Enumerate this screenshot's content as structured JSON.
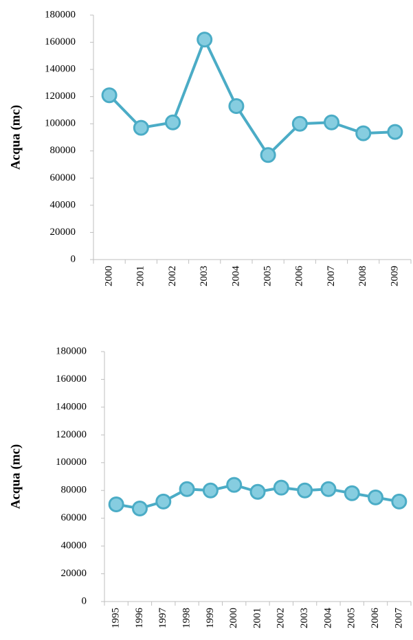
{
  "chart_data": [
    {
      "type": "line",
      "y_label": "Acqua (mc)",
      "categories": [
        "2000",
        "2001",
        "2002",
        "2003",
        "2004",
        "2005",
        "2006",
        "2007",
        "2008",
        "2009"
      ],
      "values": [
        121000,
        97000,
        101000,
        162000,
        113000,
        77000,
        100000,
        101000,
        93000,
        94000
      ],
      "color": "#4bacc6",
      "ylim": [
        0,
        180000
      ],
      "yticks": [
        0,
        20000,
        40000,
        60000,
        80000,
        100000,
        120000,
        140000,
        160000,
        180000
      ]
    },
    {
      "type": "line",
      "y_label": "Acqua (mc)",
      "categories": [
        "1995",
        "1996",
        "1997",
        "1998",
        "1999",
        "2000",
        "2001",
        "2002",
        "2003",
        "2004",
        "2005",
        "2006",
        "2007"
      ],
      "values": [
        70000,
        67000,
        72000,
        81000,
        80000,
        84000,
        79000,
        82000,
        80000,
        81000,
        78000,
        75000,
        72000
      ],
      "color": "#4bacc6",
      "ylim": [
        0,
        180000
      ],
      "yticks": [
        0,
        20000,
        40000,
        60000,
        80000,
        100000,
        120000,
        140000,
        160000,
        180000
      ]
    }
  ]
}
